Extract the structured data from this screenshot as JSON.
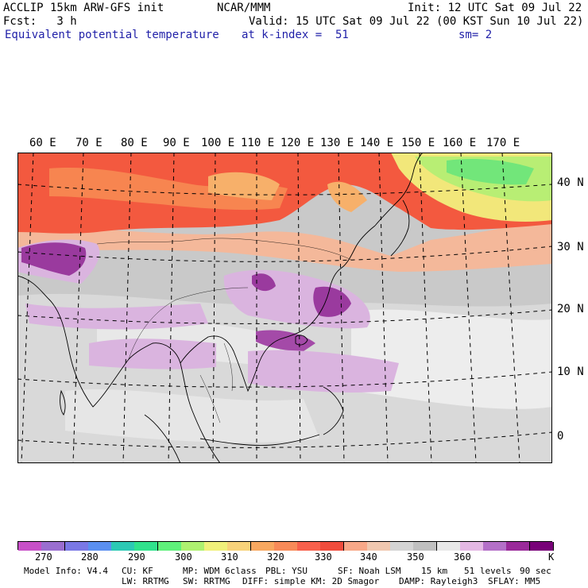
{
  "header": {
    "left_line1": "ACCLIP 15km ARW-GFS init",
    "center_line1": "NCAR/MMM",
    "right_line1": "Init: 12 UTC Sat 09 Jul 22",
    "left_line2": "Fcst:   3 h",
    "right_line2": "Valid: 15 UTC Sat 09 Jul 22 (00 KST Sun 10 Jul 22)",
    "field_name": "Equivalent potential temperature",
    "level": "at k-index =  51",
    "smoothing": "sm= 2"
  },
  "map": {
    "lon_labels": [
      "60 E",
      "70 E",
      "80 E",
      "90 E",
      "100 E",
      "110 E",
      "120 E",
      "130 E",
      "140 E",
      "150 E",
      "160 E",
      "170 E"
    ],
    "lat_labels": [
      "40 N",
      "30 N",
      "20 N",
      "10 N",
      "0"
    ]
  },
  "legend": {
    "colors": [
      "#c850c8",
      "#9a6ed0",
      "#7a78e6",
      "#5a8ff0",
      "#2cc9b4",
      "#30e28c",
      "#5ef07a",
      "#aef070",
      "#f0f07a",
      "#f8d27a",
      "#f8a860",
      "#f88a58",
      "#f8604c",
      "#f04c3c",
      "#f8a888",
      "#f0c8b0",
      "#d4d4d4",
      "#c0c0c0",
      "#e8e8e8",
      "#e4b8e4",
      "#b470c8",
      "#9a2a9a",
      "#780078"
    ],
    "labels": [
      "270",
      "280",
      "290",
      "300",
      "310",
      "320",
      "330",
      "340",
      "350",
      "360"
    ],
    "unit": "K"
  },
  "footer": {
    "line1": {
      "model_info": "Model Info: V4.4",
      "cu": "CU: KF",
      "mp": "MP: WDM 6class",
      "pbl": "PBL: YSU",
      "sf": "SF: Noah LSM",
      "res": "15 km",
      "levels": "51 levels",
      "dt": "90 sec"
    },
    "line2": {
      "lw": "LW: RRTMG",
      "sw": "SW: RRTMG",
      "diff": "DIFF: simple KM: 2D Smagor",
      "damp": "DAMP: Rayleigh3",
      "sflay": "SFLAY: MM5"
    }
  }
}
